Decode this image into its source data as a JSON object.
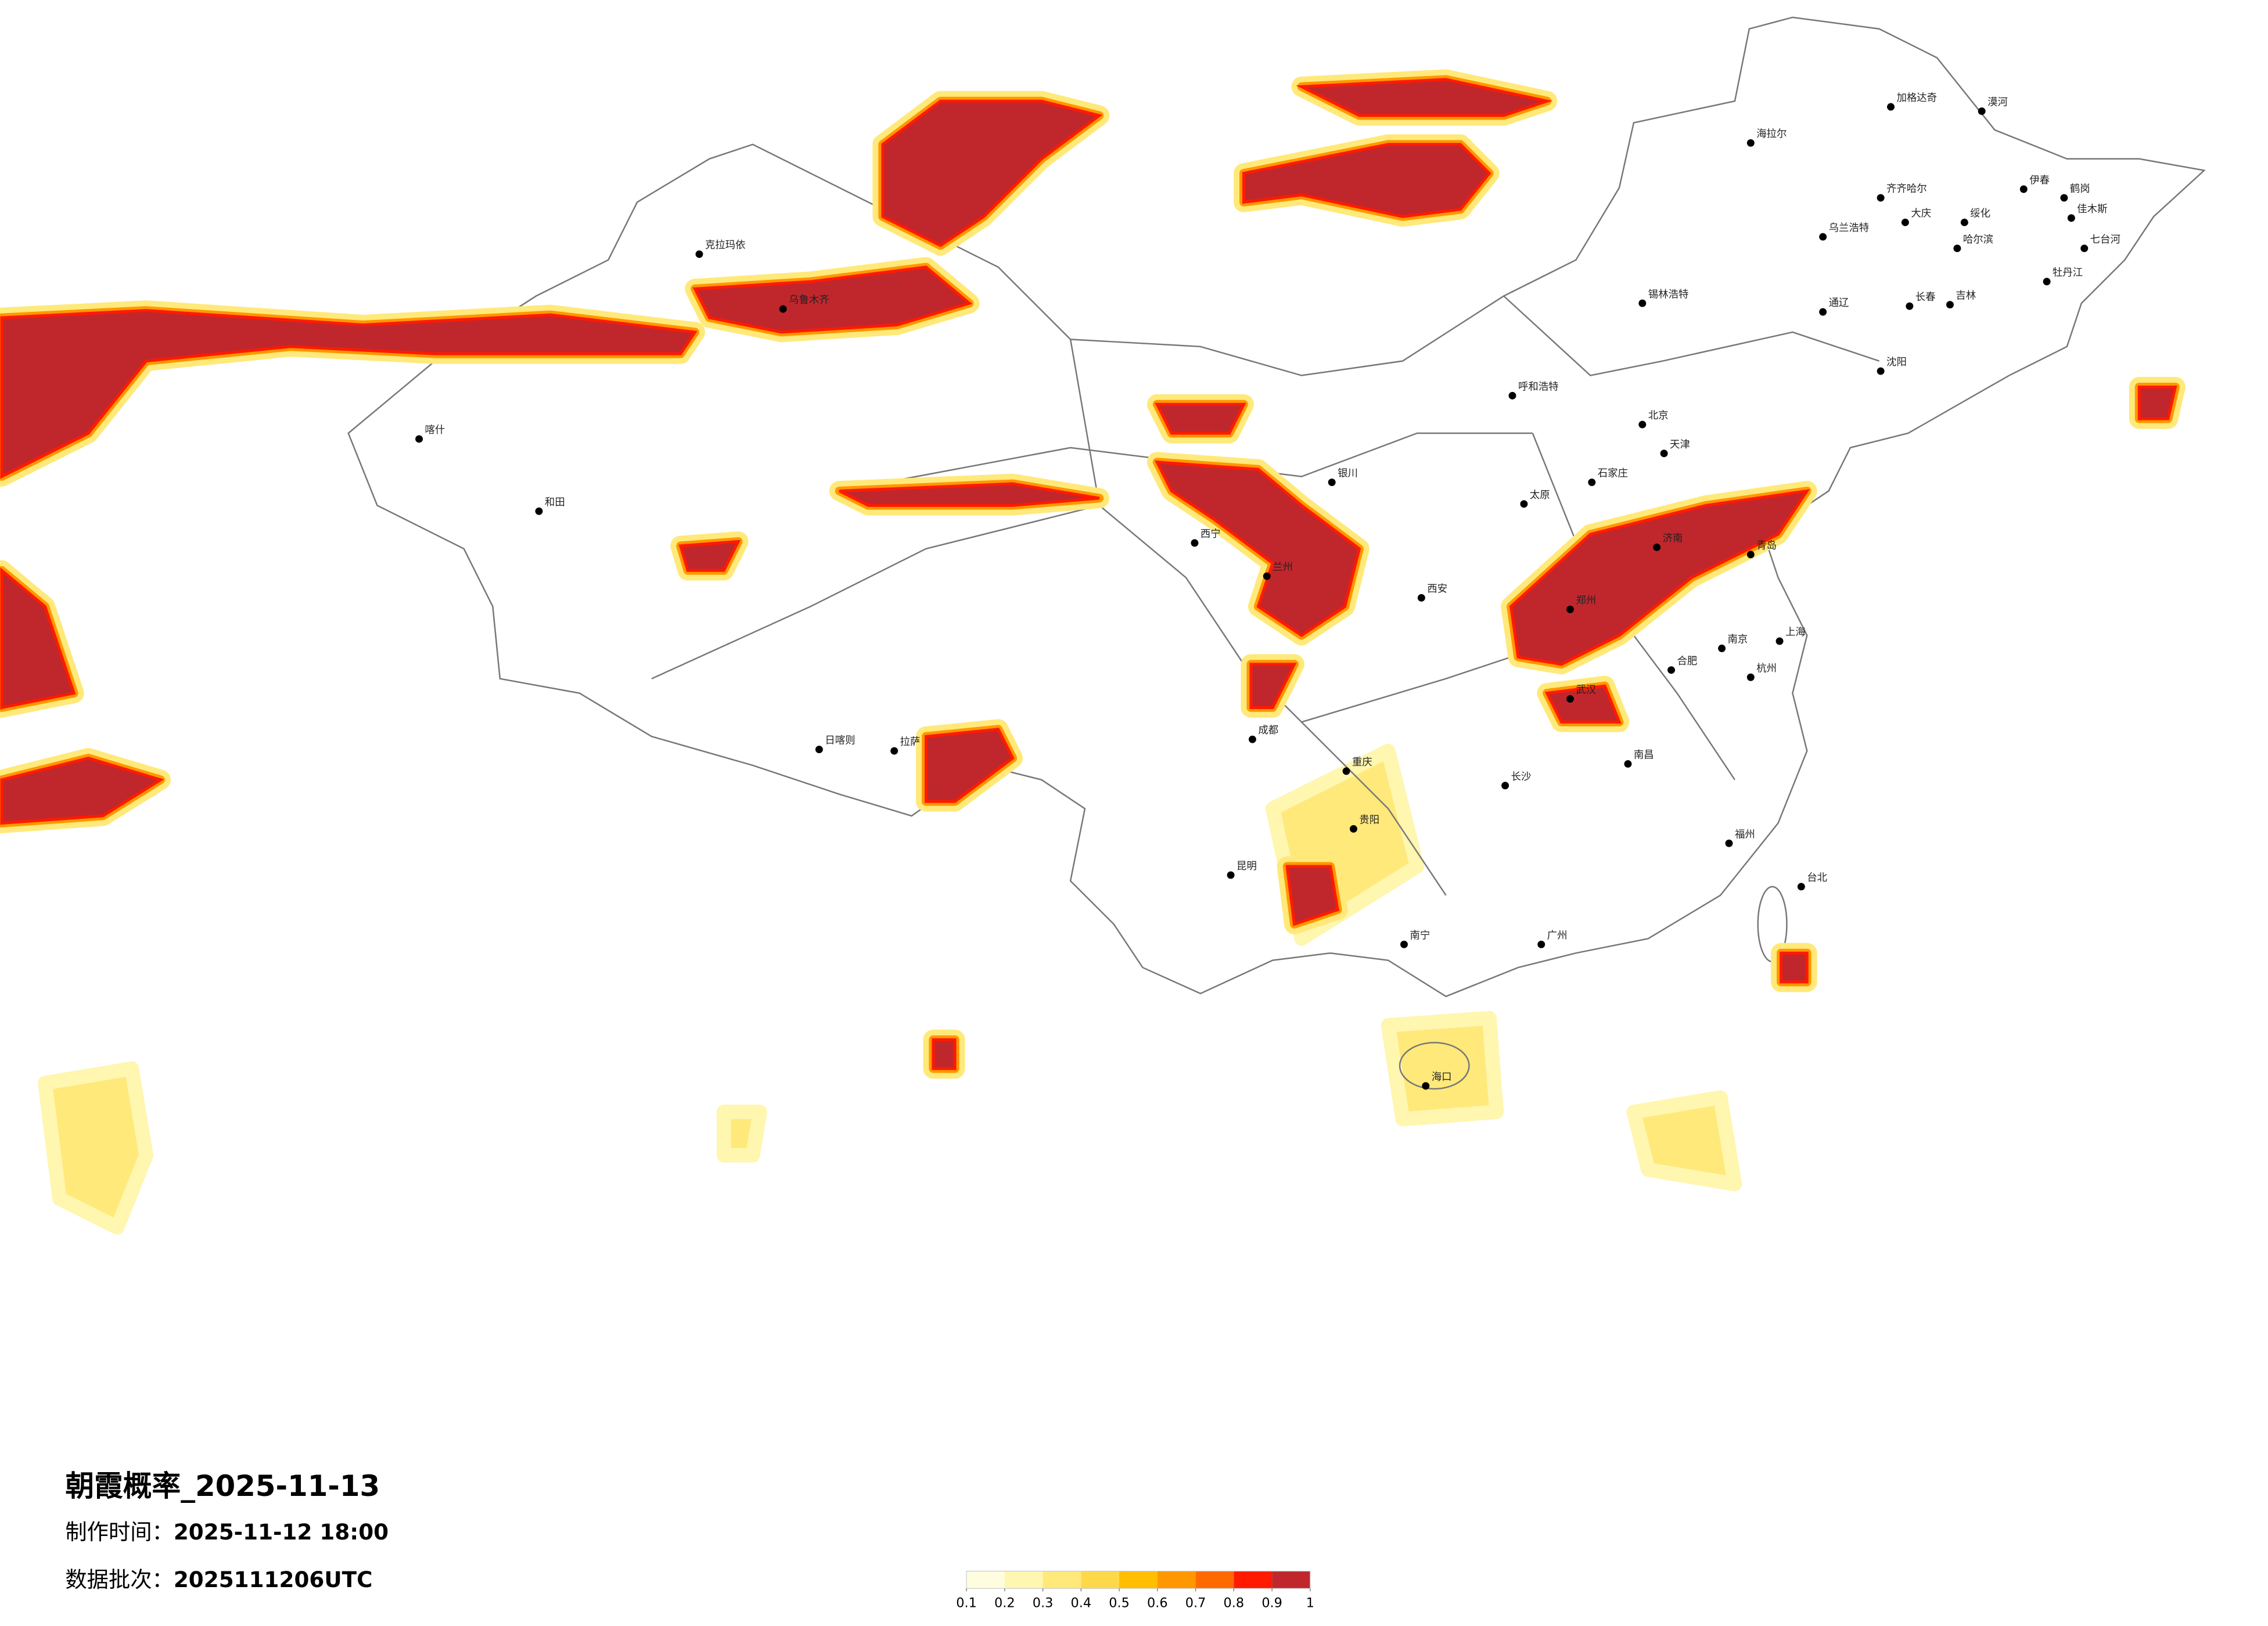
{
  "header": {
    "title": "朝霞概率_2025-11-13",
    "made_label": "制作时间：",
    "made_time": "2025-11-12 18:00",
    "batch_label": "数据批次：",
    "batch": "2025111206UTC"
  },
  "colorbar": {
    "lim": [
      0.1,
      1
    ],
    "ticks": [
      0.1,
      0.2,
      0.3,
      0.4,
      0.5,
      0.6,
      0.7,
      0.8,
      0.9,
      1
    ],
    "colors": [
      "#fffde0",
      "#fff6b0",
      "#ffe97a",
      "#ffd84a",
      "#ffbe00",
      "#ff9800",
      "#ff6a00",
      "#ff1a00",
      "#c0272d"
    ]
  },
  "cities": [
    "漠河",
    "加格达奇",
    "海拉尔",
    "伊春",
    "鹤岗",
    "齐齐哈尔",
    "大庆",
    "绥化",
    "哈尔滨",
    "佳木斯",
    "七台河",
    "乌兰浩特",
    "牡丹江",
    "长春",
    "吉林",
    "通辽",
    "锡林浩特",
    "沈阳",
    "呼和浩特",
    "北京",
    "天津",
    "石家庄",
    "太原",
    "济南",
    "青岛",
    "郑州",
    "西安",
    "兰州",
    "西宁",
    "银川",
    "拉萨",
    "日喀则",
    "乌鲁木齐",
    "克拉玛依",
    "喀什",
    "和田",
    "成都",
    "重庆",
    "贵阳",
    "昆明",
    "南宁",
    "广州",
    "长沙",
    "武汉",
    "南昌",
    "杭州",
    "上海",
    "南京",
    "合肥",
    "福州",
    "台北",
    "海口"
  ]
}
